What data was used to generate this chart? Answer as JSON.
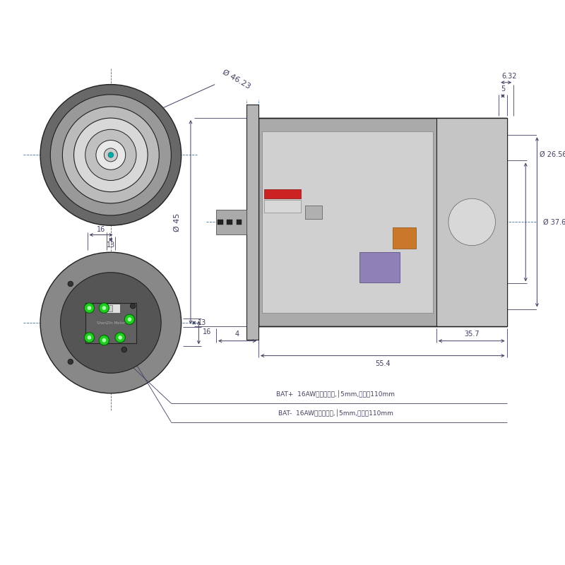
{
  "bg_color": "#ffffff",
  "line_color": "#404060",
  "dim_color": "#404060",
  "green_color": "#22cc22",
  "bat_plus_text": "BAT+  16AW红色端款线,│5mm,浸渴长110mm",
  "bat_minus_text": "BAT-  16AW黑色端款线,│5mm,浸渴长110mm",
  "dim_46_23": "Ø 46.23",
  "dim_45": "Ø 45",
  "dim_37_6": "Ø 37.6",
  "dim_26_56": "Ø 26.56",
  "dim_55_4": "55.4",
  "dim_35_7": "35.7",
  "dim_4": "4",
  "dim_5": "5",
  "dim_6_32": "6.32",
  "dim_16_top": "16",
  "dim_13_top": "13",
  "dim_13_side": "13",
  "dim_16_side": "16",
  "crosshair_color": "#4070a0",
  "dark_line": "#202020"
}
